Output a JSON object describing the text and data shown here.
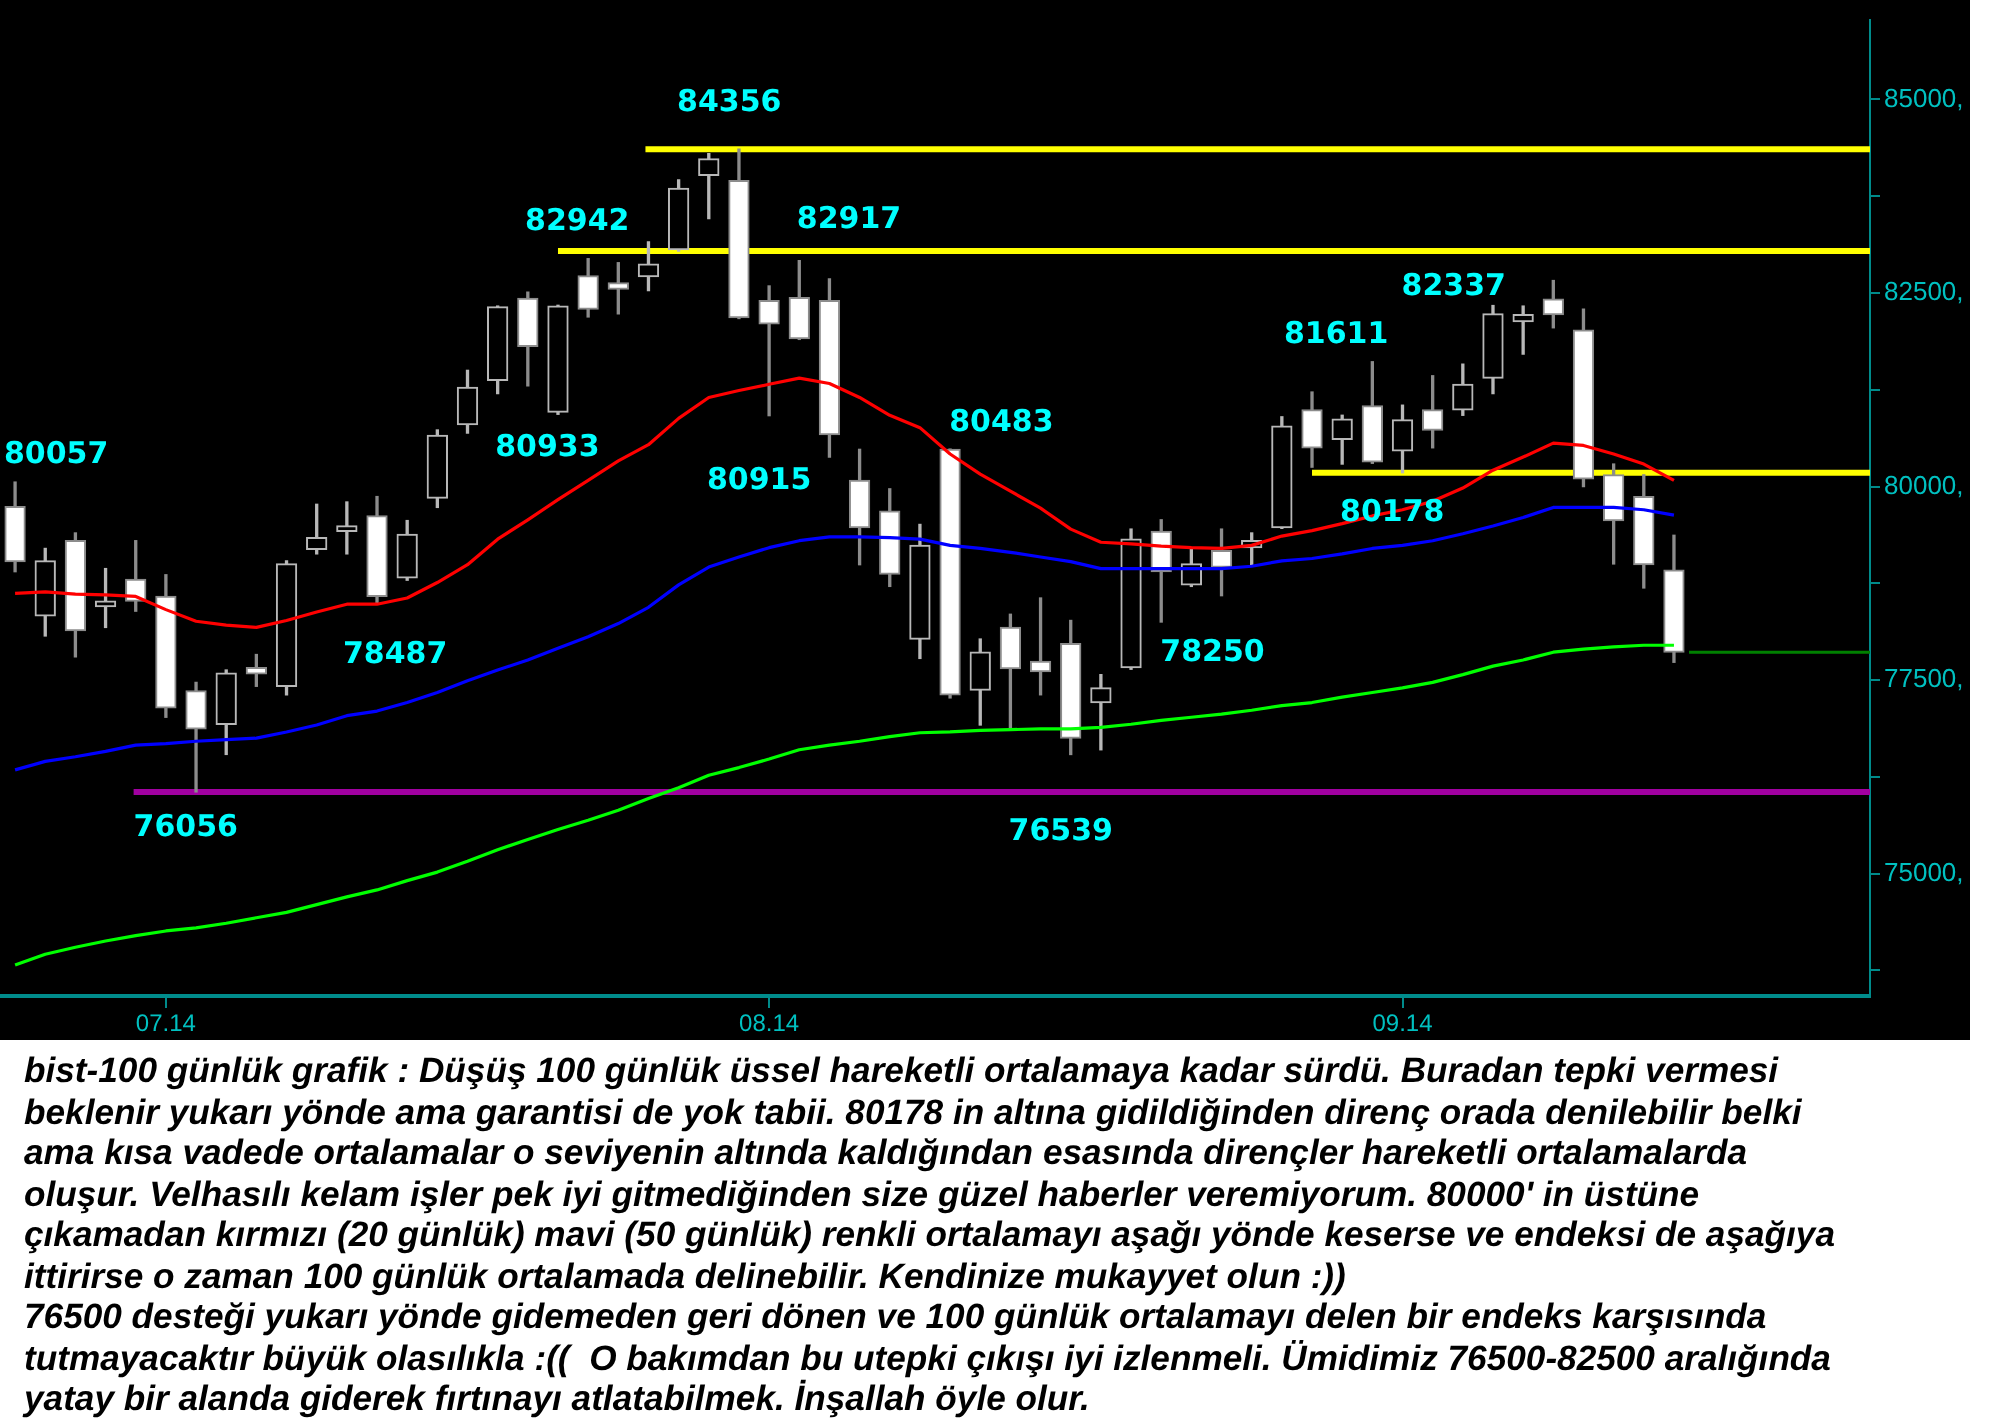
{
  "chart_data": {
    "type": "candlestick",
    "categories": [
      null,
      null,
      null,
      null,
      null,
      "07.14",
      null,
      null,
      null,
      null,
      null,
      null,
      null,
      null,
      null,
      null,
      null,
      null,
      null,
      null,
      null,
      null,
      null,
      null,
      null,
      "08.14",
      null,
      null,
      null,
      null,
      null,
      null,
      null,
      null,
      null,
      null,
      null,
      null,
      null,
      null,
      null,
      null,
      null,
      null,
      null,
      null,
      "09.14",
      null,
      null,
      null,
      null,
      null,
      null,
      null,
      null,
      null,
      null,
      null,
      null,
      null,
      null,
      null
    ],
    "ohlc": [
      [
        79740,
        80057,
        78900,
        79030
      ],
      [
        78330,
        79200,
        78070,
        79040
      ],
      [
        79300,
        79400,
        77800,
        78140
      ],
      [
        78450,
        78940,
        78180,
        78520
      ],
      [
        78800,
        79300,
        78390,
        78520
      ],
      [
        78580,
        78860,
        77020,
        77140
      ],
      [
        77360,
        77470,
        76056,
        76870
      ],
      [
        76930,
        77630,
        76540,
        77590
      ],
      [
        77660,
        77830,
        77420,
        77580
      ],
      [
        77420,
        79040,
        77310,
        79000
      ],
      [
        79190,
        79770,
        79130,
        79340
      ],
      [
        79420,
        79800,
        79130,
        79490
      ],
      [
        79620,
        79870,
        78487,
        78580
      ],
      [
        78820,
        79560,
        78790,
        79380
      ],
      [
        79850,
        80730,
        79730,
        80660
      ],
      [
        80800,
        81500,
        80690,
        81280
      ],
      [
        81370,
        82330,
        81200,
        82320
      ],
      [
        82430,
        82510,
        81300,
        81810
      ],
      [
        80960,
        82340,
        80933,
        82330
      ],
      [
        82720,
        82942,
        82190,
        82290
      ],
      [
        82630,
        82890,
        82230,
        82550
      ],
      [
        82710,
        83160,
        82530,
        82870
      ],
      [
        83060,
        83960,
        83040,
        83850
      ],
      [
        84020,
        84300,
        83460,
        84230
      ],
      [
        83950,
        84356,
        82170,
        82180
      ],
      [
        82400,
        82590,
        80915,
        82100
      ],
      [
        82440,
        82917,
        81900,
        81910
      ],
      [
        82400,
        82680,
        80380,
        80670
      ],
      [
        80080,
        80480,
        78990,
        79470
      ],
      [
        79680,
        79970,
        78710,
        78870
      ],
      [
        78030,
        79510,
        77780,
        79240
      ],
      [
        80480,
        80483,
        77270,
        77310
      ],
      [
        77370,
        78030,
        76920,
        77860
      ],
      [
        78180,
        78350,
        76870,
        77650
      ],
      [
        77740,
        78560,
        77310,
        77610
      ],
      [
        77970,
        78270,
        76539,
        76750
      ],
      [
        77210,
        77570,
        76600,
        77400
      ],
      [
        77660,
        79450,
        77640,
        79320
      ],
      [
        79420,
        79570,
        78250,
        78900
      ],
      [
        78730,
        79200,
        78710,
        79000
      ],
      [
        79170,
        79450,
        78590,
        78960
      ],
      [
        79210,
        79400,
        78990,
        79300
      ],
      [
        79470,
        80900,
        79460,
        80780
      ],
      [
        80990,
        81220,
        80250,
        80500
      ],
      [
        80610,
        80920,
        80290,
        80870
      ],
      [
        81040,
        81611,
        80300,
        80320
      ],
      [
        80460,
        81050,
        80178,
        80860
      ],
      [
        80990,
        81430,
        80500,
        80730
      ],
      [
        80990,
        81580,
        80920,
        81320
      ],
      [
        81400,
        82337,
        81200,
        82230
      ],
      [
        82130,
        82330,
        81710,
        82220
      ],
      [
        82420,
        82660,
        82050,
        82220
      ],
      [
        82020,
        82290,
        80000,
        80100
      ],
      [
        80150,
        80290,
        79000,
        79560
      ],
      [
        79870,
        80150,
        78690,
        78990
      ],
      [
        78920,
        79370,
        77730,
        77860
      ],
      null,
      null,
      null,
      null,
      null,
      null
    ],
    "series": [
      {
        "type": "line",
        "color": "#ff0000",
        "values": [
          78620,
          78640,
          78610,
          78600,
          78580,
          78410,
          78260,
          78210,
          78180,
          78270,
          78380,
          78480,
          78480,
          78560,
          78760,
          78990,
          79320,
          79570,
          79830,
          80080,
          80330,
          80540,
          80880,
          81150,
          81240,
          81320,
          81400,
          81330,
          81150,
          80920,
          80760,
          80420,
          80160,
          79940,
          79720,
          79450,
          79280,
          79260,
          79230,
          79210,
          79200,
          79240,
          79360,
          79430,
          79520,
          79620,
          79700,
          79810,
          79980,
          80210,
          80380,
          80560,
          80530,
          80420,
          80290,
          80080,
          null,
          null,
          null,
          null,
          null,
          null
        ]
      },
      {
        "type": "line",
        "color": "#0000ff",
        "values": [
          76340,
          76450,
          76510,
          76580,
          76660,
          76680,
          76710,
          76730,
          76750,
          76830,
          76920,
          77040,
          77100,
          77210,
          77340,
          77490,
          77630,
          77760,
          77910,
          78060,
          78230,
          78440,
          78730,
          78960,
          79090,
          79210,
          79300,
          79350,
          79350,
          79340,
          79320,
          79240,
          79200,
          79150,
          79090,
          79030,
          78940,
          78940,
          78940,
          78940,
          78940,
          78970,
          79040,
          79070,
          79130,
          79200,
          79240,
          79300,
          79390,
          79490,
          79600,
          79730,
          79730,
          79730,
          79700,
          79630,
          null,
          null,
          null,
          null,
          null,
          null
        ]
      },
      {
        "type": "line",
        "color": "#00ff00",
        "values": [
          73820,
          73960,
          74050,
          74130,
          74200,
          74260,
          74300,
          74360,
          74430,
          74500,
          74600,
          74700,
          74790,
          74910,
          75020,
          75160,
          75310,
          75440,
          75570,
          75690,
          75820,
          75970,
          76110,
          76270,
          76370,
          76480,
          76600,
          76660,
          76710,
          76770,
          76820,
          76830,
          76850,
          76860,
          76870,
          76870,
          76890,
          76930,
          76980,
          77020,
          77060,
          77110,
          77170,
          77210,
          77280,
          77340,
          77400,
          77470,
          77570,
          77680,
          77760,
          77860,
          77900,
          77930,
          77950,
          77950,
          null,
          null,
          null,
          null,
          null,
          null
        ]
      }
    ],
    "ylim": [
      73420,
      86030
    ],
    "yticks": [
      {
        "value": 73750,
        "label": null
      },
      {
        "value": 75000,
        "label": "75000,"
      },
      {
        "value": 76250,
        "label": null
      },
      {
        "value": 77500,
        "label": "77500,"
      },
      {
        "value": 78750,
        "label": null
      },
      {
        "value": 80000,
        "label": "80000,"
      },
      {
        "value": 81250,
        "label": null
      },
      {
        "value": 82500,
        "label": "82500,"
      },
      {
        "value": 83750,
        "label": null
      },
      {
        "value": 85000,
        "label": "85000,"
      }
    ],
    "ref_lines": [
      {
        "axis": "y",
        "value": 84356,
        "color": "#ffff00"
      },
      {
        "axis": "y",
        "value": 83040,
        "color": "#ffff00"
      },
      {
        "axis": "y",
        "value": 80178,
        "color": "#ffff00"
      },
      {
        "axis": "y",
        "value": 76056,
        "color": "#a000a0"
      },
      {
        "axis": "y",
        "value": 77860,
        "color": "#008000"
      }
    ],
    "annotations": [
      "80057",
      {
        "text": "76056",
        "y": 76056
      },
      {
        "text": "78487",
        "y": 78487
      },
      {
        "text": "80933",
        "y": 80933
      },
      {
        "text": "82942",
        "y": 82942
      },
      {
        "text": "84356",
        "y": 84356
      },
      {
        "text": "80915",
        "y": 80915
      },
      {
        "text": "82917",
        "y": 82917
      },
      "80483",
      {
        "text": "76539",
        "y": 76539
      },
      "78250",
      "81611",
      "82337",
      {
        "text": "80178",
        "y": 80178
      },
      "bist-100 günlük grafik : Düşüş 100 günlük üssel hareketli ortalamaya kadar sürdü. Buradan tepki vermesi beklenir yukarı yönde ama garantisi de yok tabii. 80178 in altına gidildiğinden direnç orada denilebilir belki ama kısa vadede ortalamalar o seviyenin altında kaldığından esasında dirençler hareketli ortalamalarda oluşur. Velhasılı kelam işler pek iyi gitmediğinden size güzel haberler veremiyorum. 80000' in üstüne çıkamadan kırmızı (20 günlük) mavi (50 günlük) renkli ortalamayı aşağı yönde keserse ve endeksi de aşağıya ittirirse o zaman 100 günlük ortalamada delinebilir. Kendinize mukayyet olun :))",
      "76500 desteği yukarı yönde gidemeden geri dönen ve 100 günlük ortalamayı delen bir endeks karşısında tutmayacaktır büyük olasılıkla :((  O bakımdan bu utepki çıkışı iyi izlenmeli. Ümidimiz 76500-82500 aralığında yatay bir alanda giderek fırtınayı atlatabilmek. İnşallah öyle olur."
    ]
  }
}
